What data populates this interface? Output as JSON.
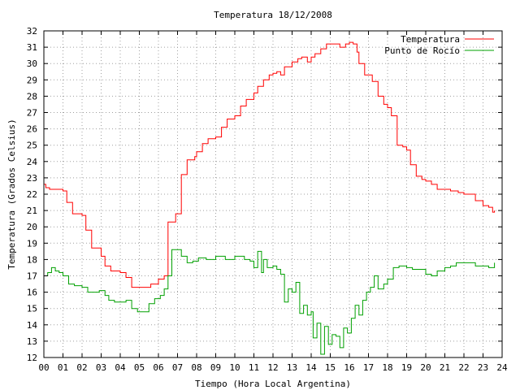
{
  "chart_data": {
    "type": "line",
    "title": "Temperatura 18/12/2008",
    "xlabel": "Tiempo (Hora Local Argentina)",
    "ylabel": "Temperatura (Grados Celsius)",
    "xlim": [
      0,
      24
    ],
    "ylim": [
      12,
      32
    ],
    "x_ticks": [
      "00",
      "01",
      "02",
      "03",
      "04",
      "05",
      "06",
      "07",
      "08",
      "09",
      "10",
      "11",
      "12",
      "13",
      "14",
      "15",
      "16",
      "17",
      "18",
      "19",
      "20",
      "21",
      "22",
      "23",
      "24"
    ],
    "y_ticks": [
      "12",
      "13",
      "14",
      "15",
      "16",
      "17",
      "18",
      "19",
      "20",
      "21",
      "22",
      "23",
      "24",
      "25",
      "26",
      "27",
      "28",
      "29",
      "30",
      "31",
      "32"
    ],
    "grid": true,
    "legend_position": "top-right",
    "series": [
      {
        "name": "Temperatura",
        "color": "#ff0000",
        "x": [
          0,
          0.1,
          0.3,
          0.6,
          1.0,
          1.2,
          1.5,
          2.0,
          2.2,
          2.5,
          2.8,
          3.0,
          3.2,
          3.5,
          4.0,
          4.3,
          4.6,
          5.0,
          5.3,
          5.6,
          6.0,
          6.3,
          6.5,
          6.9,
          7.2,
          7.5,
          7.9,
          8.0,
          8.3,
          8.6,
          9.0,
          9.3,
          9.6,
          10.0,
          10.3,
          10.6,
          11.0,
          11.2,
          11.5,
          11.8,
          12.0,
          12.2,
          12.4,
          12.6,
          13.0,
          13.1,
          13.3,
          13.5,
          13.8,
          14.0,
          14.2,
          14.5,
          14.8,
          15.0,
          15.2,
          15.5,
          15.8,
          16.0,
          16.2,
          16.4,
          16.5,
          16.8,
          17.0,
          17.2,
          17.5,
          17.8,
          18.0,
          18.2,
          18.5,
          18.8,
          19.0,
          19.2,
          19.5,
          19.8,
          20.0,
          20.3,
          20.6,
          21.0,
          21.3,
          21.7,
          22.0,
          22.3,
          22.6,
          23.0,
          23.3,
          23.5,
          23.6
        ],
        "values": [
          22.6,
          22.4,
          22.3,
          22.3,
          22.2,
          21.5,
          20.8,
          20.7,
          19.8,
          18.7,
          18.7,
          18.2,
          17.6,
          17.3,
          17.2,
          16.9,
          16.3,
          16.3,
          16.3,
          16.5,
          16.8,
          17.0,
          20.3,
          20.8,
          23.2,
          24.1,
          24.3,
          24.6,
          25.1,
          25.4,
          25.5,
          26.1,
          26.6,
          26.8,
          27.4,
          27.8,
          28.2,
          28.6,
          29.0,
          29.3,
          29.4,
          29.5,
          29.3,
          29.8,
          30.1,
          30.1,
          30.3,
          30.4,
          30.1,
          30.4,
          30.6,
          30.9,
          31.2,
          31.2,
          31.2,
          31.0,
          31.2,
          31.3,
          31.2,
          30.7,
          30.0,
          29.3,
          29.3,
          28.9,
          28.0,
          27.5,
          27.3,
          26.8,
          25.0,
          24.9,
          24.7,
          23.8,
          23.1,
          22.9,
          22.8,
          22.6,
          22.3,
          22.3,
          22.2,
          22.1,
          22.0,
          22.0,
          21.6,
          21.3,
          21.2,
          20.9,
          21.0
        ]
      },
      {
        "name": "Punto de Rocío",
        "color": "#00a000",
        "x": [
          0,
          0.2,
          0.4,
          0.6,
          0.8,
          1.0,
          1.3,
          1.6,
          2.0,
          2.3,
          2.6,
          2.9,
          3.2,
          3.4,
          3.7,
          4.0,
          4.3,
          4.6,
          4.9,
          5.2,
          5.5,
          5.8,
          6.1,
          6.3,
          6.5,
          6.7,
          7.0,
          7.2,
          7.5,
          7.8,
          8.1,
          8.5,
          9.0,
          9.5,
          10.0,
          10.5,
          10.8,
          11.0,
          11.2,
          11.4,
          11.5,
          11.7,
          11.9,
          12.0,
          12.2,
          12.4,
          12.6,
          12.8,
          13.0,
          13.2,
          13.4,
          13.6,
          13.8,
          14.0,
          14.1,
          14.3,
          14.5,
          14.7,
          14.9,
          15.1,
          15.3,
          15.5,
          15.7,
          15.9,
          16.1,
          16.3,
          16.5,
          16.7,
          16.9,
          17.1,
          17.3,
          17.5,
          17.8,
          18.0,
          18.3,
          18.6,
          19.0,
          19.3,
          19.6,
          20.0,
          20.3,
          20.6,
          21.0,
          21.3,
          21.6,
          22.0,
          22.3,
          22.6,
          23.0,
          23.3,
          23.6
        ],
        "values": [
          17.0,
          17.2,
          17.5,
          17.3,
          17.2,
          17.0,
          16.5,
          16.4,
          16.3,
          16.0,
          16.0,
          16.1,
          15.8,
          15.5,
          15.4,
          15.4,
          15.5,
          15.0,
          14.8,
          14.8,
          15.3,
          15.6,
          15.8,
          16.2,
          17.0,
          18.6,
          18.6,
          18.2,
          17.8,
          17.9,
          18.1,
          18.0,
          18.2,
          18.0,
          18.2,
          18.0,
          17.9,
          17.5,
          18.5,
          17.2,
          18.0,
          17.5,
          17.5,
          17.6,
          17.4,
          17.1,
          15.4,
          16.2,
          16.0,
          16.6,
          14.7,
          15.2,
          14.6,
          14.8,
          13.2,
          14.1,
          12.2,
          13.9,
          12.8,
          13.4,
          13.3,
          12.6,
          13.8,
          13.5,
          14.4,
          15.2,
          14.6,
          15.5,
          16.0,
          16.3,
          17.0,
          16.2,
          16.5,
          16.8,
          17.5,
          17.6,
          17.5,
          17.4,
          17.4,
          17.1,
          17.0,
          17.3,
          17.5,
          17.6,
          17.8,
          17.8,
          17.8,
          17.6,
          17.6,
          17.5,
          17.8
        ]
      }
    ]
  }
}
